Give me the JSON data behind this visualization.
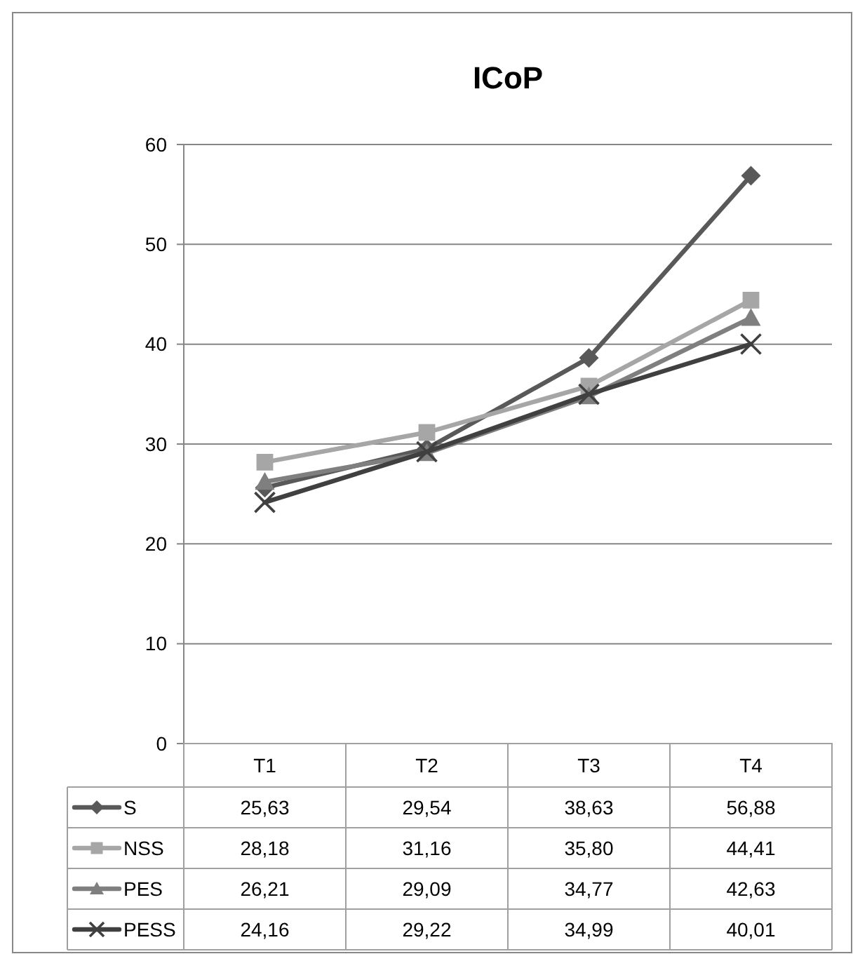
{
  "chart_data": {
    "type": "line",
    "title": "ICoP",
    "categories": [
      "T1",
      "T2",
      "T3",
      "T4"
    ],
    "ylim": [
      0,
      60
    ],
    "yticks": [
      0,
      10,
      20,
      30,
      40,
      50,
      60
    ],
    "grid": "y",
    "line_style": "solid",
    "legend": "bottom",
    "series": [
      {
        "name": "S",
        "color": "#595959",
        "marker": "diamond",
        "values": [
          25.63,
          29.54,
          38.63,
          56.88
        ],
        "value_labels": [
          "25,63",
          "29,54",
          "38,63",
          "56,88"
        ]
      },
      {
        "name": "NSS",
        "color": "#a6a6a6",
        "marker": "square",
        "values": [
          28.18,
          31.16,
          35.8,
          44.41
        ],
        "value_labels": [
          "28,18",
          "31,16",
          "35,80",
          "44,41"
        ]
      },
      {
        "name": "PES",
        "color": "#7f7f7f",
        "marker": "triangle",
        "values": [
          26.21,
          29.09,
          34.77,
          42.63
        ],
        "value_labels": [
          "26,21",
          "29,09",
          "34,77",
          "42,63"
        ]
      },
      {
        "name": "PESS",
        "color": "#404040",
        "marker": "cross",
        "values": [
          24.16,
          29.22,
          34.99,
          40.01
        ],
        "value_labels": [
          "24,16",
          "29,22",
          "34,99",
          "40,01"
        ]
      }
    ]
  }
}
